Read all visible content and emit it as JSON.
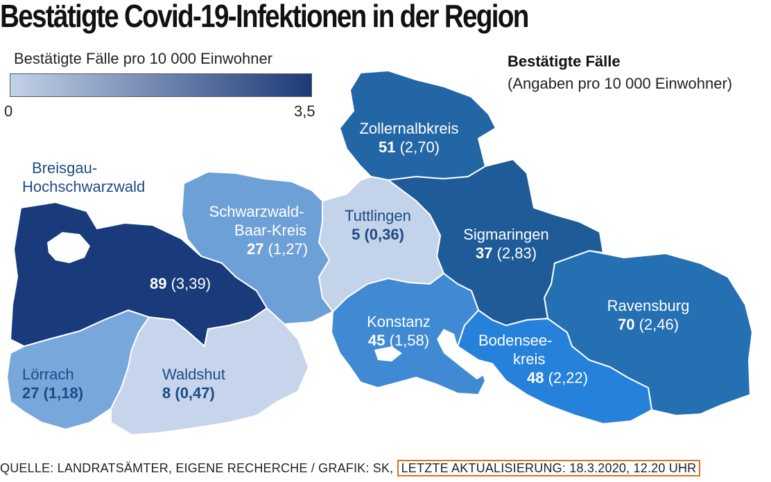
{
  "title": "Bestätigte Covid-19-Infektionen in der Region",
  "legend": {
    "label": "Bestätigte Fälle pro 10 000 Einwohner",
    "min": "0",
    "max": "3,5",
    "colors": [
      "#c3d1e8",
      "#1d3a78"
    ]
  },
  "info": {
    "title": "Bestätigte Fälle",
    "subtitle": "(Angaben pro 10 000 Einwohner)"
  },
  "regions": [
    {
      "id": "zollernalbkreis",
      "name": "Zollernalbkreis",
      "cases": "51",
      "rate": "(2,70)",
      "color": "#2266a6"
    },
    {
      "id": "sigmaringen",
      "name": "Sigmaringen",
      "cases": "37",
      "rate": "(2,83)",
      "color": "#1e5b98"
    },
    {
      "id": "ravensburg",
      "name": "Ravensburg",
      "cases": "70",
      "rate": "(2,46)",
      "color": "#2470b2"
    },
    {
      "id": "tuttlingen",
      "name": "Tuttlingen",
      "cases": "5",
      "rate": "(0,36)",
      "color": "#c3d3ea"
    },
    {
      "id": "schwarzwald-baar-kreis",
      "name_line1": "Schwarzwald-",
      "name_line2": "Baar-Kreis",
      "cases": "27",
      "rate": "(1,27)",
      "color": "#6ea0d8"
    },
    {
      "id": "breisgau-hochschwarzwald",
      "name_line1": "Breisgau-",
      "name_line2": "Hochschwarzwald",
      "cases": "89",
      "rate": "(3,39)",
      "color": "#193b7b"
    },
    {
      "id": "loerrach",
      "name": "Lörrach",
      "cases": "27",
      "rate": "(1,18)",
      "color": "#78a7dc"
    },
    {
      "id": "waldshut",
      "name": "Waldshut",
      "cases": "8",
      "rate": "(0,47)",
      "color": "#c6d5eb"
    },
    {
      "id": "konstanz",
      "name": "Konstanz",
      "cases": "45",
      "rate": "(1,58)",
      "color": "#3f8ad2"
    },
    {
      "id": "bodenseekreis",
      "name_line1": "Bodensee-",
      "name_line2": "kreis",
      "cases": "48",
      "rate": "(2,22)",
      "color": "#2681da"
    }
  ],
  "source": {
    "text": "QUELLE: LANDRATSÄMTER, EIGENE RECHERCHE / GRAFIK: SK,",
    "updated": "LETZTE AKTUALISIERUNG: 18.3.2020, 12.20 UHR"
  }
}
